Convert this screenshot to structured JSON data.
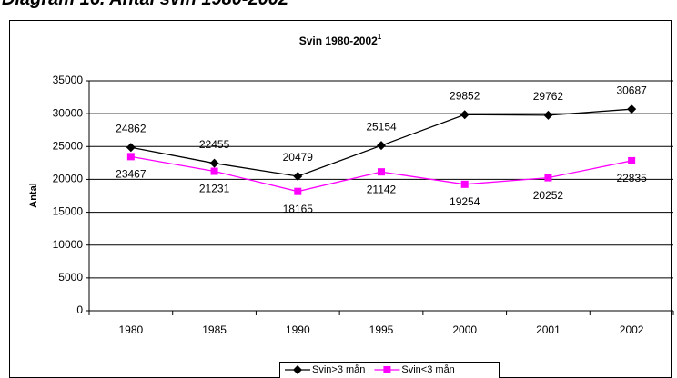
{
  "heading": "Diagram 16. Antal svin 1980-2002",
  "chart_data": {
    "type": "line",
    "title": "Svin 1980-2002",
    "title_superscript": "1",
    "y_label": "Antal",
    "categories": [
      "1980",
      "1985",
      "1990",
      "1995",
      "2000",
      "2001",
      "2002"
    ],
    "series": [
      {
        "name": "Svin>3 mån",
        "color": "#000000",
        "marker": "diamond",
        "values": [
          24862,
          22455,
          20479,
          25154,
          29852,
          29762,
          30687
        ]
      },
      {
        "name": "Svin<3 mån",
        "color": "#ff00ff",
        "marker": "square",
        "values": [
          23467,
          21231,
          18165,
          21142,
          19254,
          20252,
          22835
        ]
      }
    ],
    "ylim": [
      0,
      35000
    ],
    "yticks": [
      0,
      5000,
      10000,
      15000,
      20000,
      25000,
      30000,
      35000
    ],
    "grid": true,
    "legend": "bottom"
  }
}
